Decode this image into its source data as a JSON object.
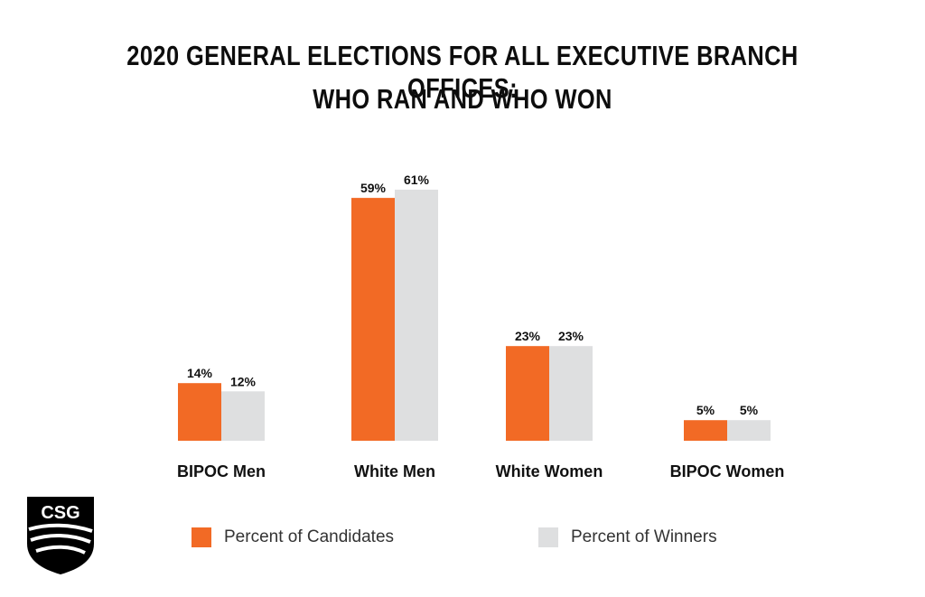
{
  "title_line1": "2020 GENERAL ELECTIONS FOR ALL EXECUTIVE BRANCH OFFICES:",
  "title_line2": "WHO RAN AND WHO WON",
  "logo": {
    "text": "CSG",
    "icon": "csg-shield-logo"
  },
  "colors": {
    "candidates": "#f26a25",
    "winners": "#dedfe0"
  },
  "legend": [
    {
      "label": "Percent of Candidates",
      "color": "#f26a25"
    },
    {
      "label": "Percent of Winners",
      "color": "#dedfe0"
    }
  ],
  "chart_data": {
    "type": "bar",
    "categories": [
      "BIPOC Men",
      "White Men",
      "White Women",
      "BIPOC Women"
    ],
    "series": [
      {
        "name": "Percent of Candidates",
        "values": [
          14,
          59,
          23,
          5
        ],
        "labels": [
          "14%",
          "59%",
          "23%",
          "5%"
        ]
      },
      {
        "name": "Percent of Winners",
        "values": [
          12,
          61,
          23,
          5
        ],
        "labels": [
          "12%",
          "61%",
          "23%",
          "5%"
        ]
      }
    ],
    "title": "2020 GENERAL ELECTIONS FOR ALL EXECUTIVE BRANCH OFFICES: WHO RAN AND WHO WON",
    "xlabel": "",
    "ylabel": "",
    "ylim": [
      0,
      61
    ],
    "grid": false,
    "legend_position": "bottom"
  }
}
